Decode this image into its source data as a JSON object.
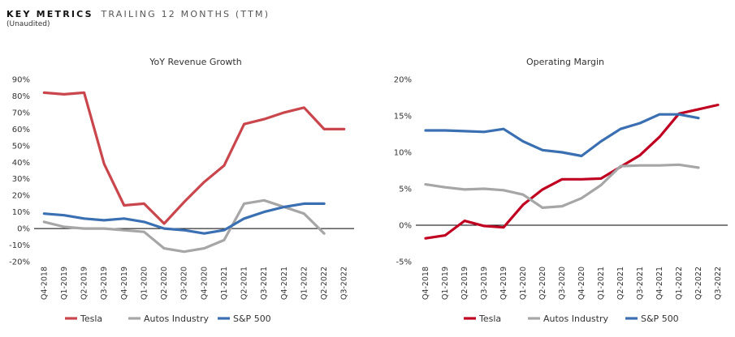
{
  "header": {
    "title": "KEY METRICS",
    "subtitle": "TRAILING 12 MONTHS (TTM)",
    "note": "(Unaudited)"
  },
  "colors": {
    "Tesla": "#c9464c",
    "Autos Industry": "#a6a6a6",
    "S&P 500": "#3a6fb2",
    "Tesla_margin": "#c00020"
  },
  "chart_data": [
    {
      "type": "line",
      "title": "YoY Revenue Growth",
      "categories": [
        "Q4-2018",
        "Q1-2019",
        "Q2-2019",
        "Q3-2019",
        "Q4-2019",
        "Q1-2020",
        "Q2-2020",
        "Q3-2020",
        "Q4-2020",
        "Q1-2021",
        "Q2-2021",
        "Q3-2021",
        "Q4-2021",
        "Q1-2022",
        "Q2-2022",
        "Q3-2022"
      ],
      "ylim": [
        -20,
        90
      ],
      "yticks": [
        -20,
        -10,
        0,
        10,
        20,
        30,
        40,
        50,
        60,
        70,
        80,
        90
      ],
      "ytick_labels": [
        "-20%",
        "-10%",
        "0%",
        "10%",
        "20%",
        "30%",
        "40%",
        "50%",
        "60%",
        "70%",
        "80%",
        "90%"
      ],
      "grid": false,
      "legend": "bottom",
      "series": [
        {
          "name": "Tesla",
          "values": [
            82,
            81,
            82,
            39,
            14,
            15,
            3,
            16,
            28,
            38,
            63,
            66,
            70,
            73,
            60,
            60
          ]
        },
        {
          "name": "Autos Industry",
          "values": [
            4,
            1,
            0,
            0,
            -1,
            -2,
            -12,
            -14,
            -12,
            -7,
            15,
            17,
            13,
            9,
            -3,
            null
          ]
        },
        {
          "name": "S&P 500",
          "values": [
            9,
            8,
            6,
            5,
            6,
            4,
            0,
            -1,
            -3,
            -1,
            6,
            10,
            13,
            15,
            15,
            null
          ]
        }
      ]
    },
    {
      "type": "line",
      "title": "Operating Margin",
      "categories": [
        "Q4-2018",
        "Q1-2019",
        "Q2-2019",
        "Q3-2019",
        "Q4-2019",
        "Q1-2020",
        "Q2-2020",
        "Q3-2020",
        "Q4-2020",
        "Q1-2021",
        "Q2-2021",
        "Q3-2021",
        "Q4-2021",
        "Q1-2022",
        "Q2-2022",
        "Q3-2022"
      ],
      "ylim": [
        -5,
        20
      ],
      "yticks": [
        -5,
        0,
        5,
        10,
        15,
        20
      ],
      "ytick_labels": [
        "-5%",
        "0%",
        "5%",
        "10%",
        "15%",
        "20%"
      ],
      "grid": false,
      "legend": "bottom",
      "series": [
        {
          "name": "Tesla",
          "values": [
            -1.8,
            -1.4,
            0.6,
            -0.1,
            -0.3,
            2.8,
            4.9,
            6.3,
            6.3,
            6.4,
            8.0,
            9.6,
            12.1,
            15.3,
            15.9,
            16.5
          ]
        },
        {
          "name": "Autos Industry",
          "values": [
            5.6,
            5.2,
            4.9,
            5.0,
            4.8,
            4.2,
            2.4,
            2.6,
            3.7,
            5.5,
            8.1,
            8.2,
            8.2,
            8.3,
            7.9,
            null
          ]
        },
        {
          "name": "S&P 500",
          "values": [
            13.0,
            13.0,
            12.9,
            12.8,
            13.2,
            11.5,
            10.3,
            10.0,
            9.5,
            11.5,
            13.2,
            14.0,
            15.2,
            15.2,
            14.7,
            null
          ]
        }
      ]
    }
  ]
}
